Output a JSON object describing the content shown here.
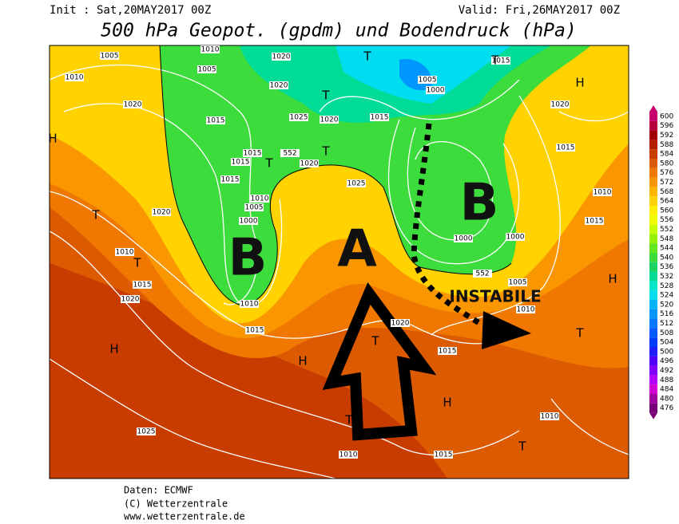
{
  "header": {
    "init": "Init : Sat,20MAY2017 00Z",
    "valid": "Valid: Fri,26MAY2017 00Z",
    "title": "500 hPa Geopot. (gpdm) und Bodendruck (hPa)"
  },
  "map": {
    "isobars": [
      "1005",
      "1010",
      "1005",
      "1020",
      "1020",
      "1010",
      "1020",
      "1015",
      "1025",
      "1020",
      "1015",
      "1005",
      "1000",
      "1015",
      "1020",
      "1015",
      "1015",
      "1015",
      "552",
      "1020",
      "1015",
      "1025",
      "1020",
      "1010",
      "1005",
      "1000",
      "1010",
      "1015",
      "1000",
      "1000",
      "1010",
      "1015",
      "1020",
      "1010",
      "552",
      "1005",
      "1010",
      "1015",
      "1020",
      "1015",
      "1025",
      "1010",
      "1015",
      "1010"
    ],
    "letters": [
      "H",
      "T",
      "T",
      "T",
      "T",
      "T",
      "T",
      "T",
      "H",
      "H",
      "T",
      "T",
      "H",
      "T",
      "H",
      "T",
      "H"
    ],
    "lows": [
      "B",
      "B"
    ],
    "high": "A",
    "annotation": "INSTABILE"
  },
  "colorbar": {
    "levels": [
      600,
      596,
      592,
      588,
      584,
      580,
      576,
      572,
      568,
      564,
      560,
      556,
      552,
      548,
      544,
      540,
      536,
      532,
      528,
      524,
      520,
      516,
      512,
      508,
      504,
      500,
      496,
      492,
      488,
      484,
      480,
      476
    ],
    "colors": [
      "#c8006e",
      "#b4003c",
      "#a00000",
      "#b41e00",
      "#c83c00",
      "#dc5a00",
      "#f07800",
      "#fa9600",
      "#ffb400",
      "#ffd200",
      "#fff000",
      "#f0ff00",
      "#c8ff00",
      "#96f000",
      "#64e61e",
      "#3cdc3c",
      "#1ed264",
      "#00dc96",
      "#00e6c8",
      "#00dcf0",
      "#00b4ff",
      "#0096ff",
      "#0078ff",
      "#005aff",
      "#003cff",
      "#1e1eff",
      "#5000ff",
      "#8200ff",
      "#b400ff",
      "#d200d2",
      "#a000a0",
      "#780078"
    ]
  },
  "footer": {
    "source": "Daten: ECMWF",
    "copyright": "(C) Wetterzentrale",
    "url": "www.wetterzentrale.de"
  }
}
